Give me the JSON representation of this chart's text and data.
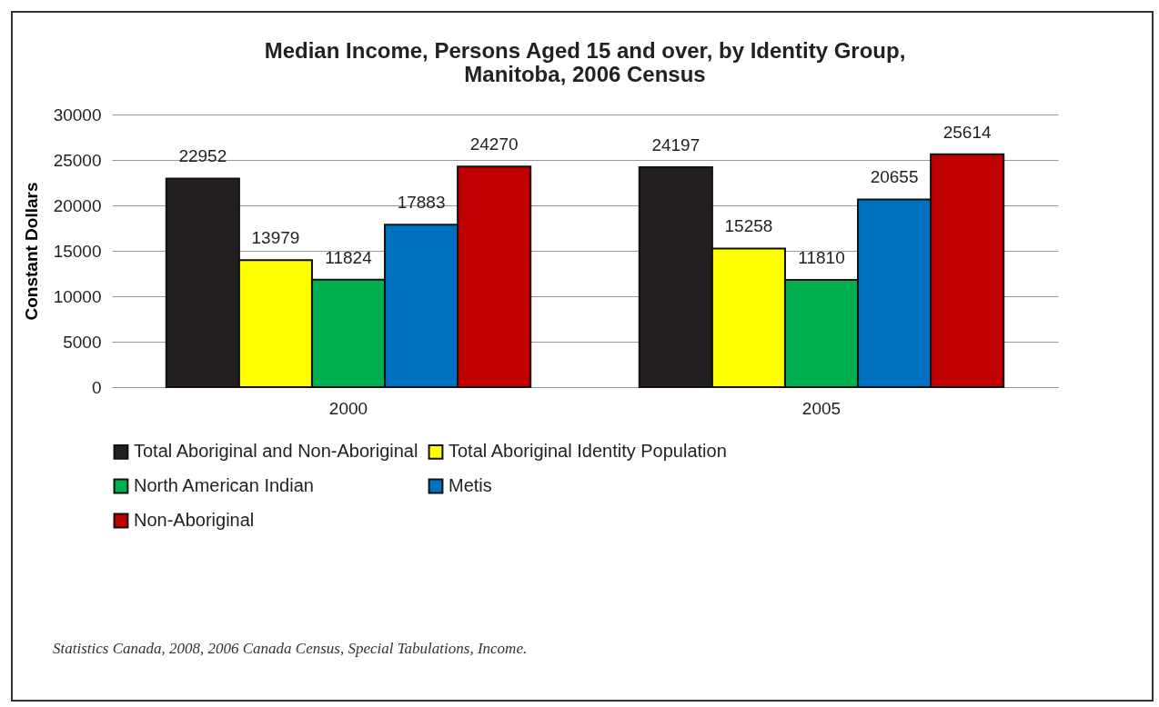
{
  "chart_data": {
    "type": "bar",
    "title": "Median Income, Persons Aged 15 and over, by Identity Group,\nManitoba,  2006 Census",
    "ylabel": "Constant Dollars",
    "categories": [
      "2000",
      "2005"
    ],
    "series": [
      {
        "name": "Total Aboriginal and Non-Aboriginal",
        "color": "#231f20",
        "values": [
          22952,
          24197
        ]
      },
      {
        "name": "Total Aboriginal Identity Population",
        "color": "#ffff00",
        "values": [
          13979,
          15258
        ]
      },
      {
        "name": "North American Indian",
        "color": "#00b050",
        "values": [
          11824,
          11810
        ]
      },
      {
        "name": "Metis",
        "color": "#0070c0",
        "values": [
          17883,
          20655
        ]
      },
      {
        "name": "Non-Aboriginal",
        "color": "#c00000",
        "values": [
          24270,
          25614
        ]
      }
    ],
    "ylim": [
      0,
      30000
    ],
    "yticks": [
      0,
      5000,
      10000,
      15000,
      20000,
      25000,
      30000
    ],
    "grid": "y",
    "legend": "bottom",
    "data_labels": true,
    "annotations": [
      "Statistics Canada, 2008, 2006 Canada Census, Special Tabulations, Income."
    ]
  }
}
